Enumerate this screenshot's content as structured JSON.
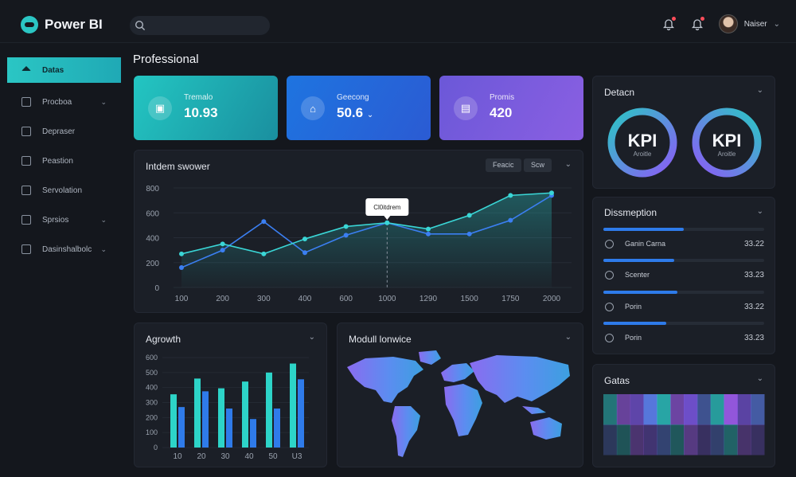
{
  "app": {
    "title": "Power BI"
  },
  "header": {
    "search_placeholder": "",
    "user_name": "Naiser"
  },
  "sidebar": {
    "items": [
      {
        "label": "Datas",
        "active": true,
        "has_caret": false
      },
      {
        "label": "Procboa",
        "active": false,
        "has_caret": true
      },
      {
        "label": "Depraser",
        "active": false,
        "has_caret": false
      },
      {
        "label": "Peastion",
        "active": false,
        "has_caret": false
      },
      {
        "label": "Servolation",
        "active": false,
        "has_caret": false
      },
      {
        "label": "Sprsios",
        "active": false,
        "has_caret": true
      },
      {
        "label": "Dasinshalbolc",
        "active": false,
        "has_caret": true
      }
    ]
  },
  "page": {
    "title": "Professional"
  },
  "kpi_tiles": [
    {
      "label": "Tremalo",
      "value": "10.93",
      "icon": "inbox-icon",
      "has_caret": false
    },
    {
      "label": "Geecong",
      "value": "50.6",
      "icon": "home-icon",
      "has_caret": true
    },
    {
      "label": "Promis",
      "value": "420",
      "icon": "calendar-icon",
      "has_caret": false
    }
  ],
  "line_chart": {
    "title": "Intdem swower",
    "buttons": [
      "Feacic",
      "Scw"
    ],
    "tooltip": "Cl0itdrem"
  },
  "detach": {
    "title": "Detacn",
    "donuts": [
      {
        "big": "KPI",
        "small": "Aroitle"
      },
      {
        "big": "KPI",
        "small": "Aroitle"
      }
    ]
  },
  "distribution": {
    "title": "Dissmeption",
    "rows": [
      {
        "name": "Ganin Carna",
        "value": "33.22",
        "fraction": 0.5
      },
      {
        "name": "Scenter",
        "value": "33.23",
        "fraction": 0.44
      },
      {
        "name": "Porin",
        "value": "33.22",
        "fraction": 0.46
      },
      {
        "name": "Porin",
        "value": "33.23",
        "fraction": 0.39
      }
    ]
  },
  "growth": {
    "title": "Agrowth"
  },
  "map": {
    "title": "Modull lonwice"
  },
  "heatmap": {
    "title": "Gatas"
  },
  "colors": {
    "teal": "#2bc6c4",
    "blue": "#2e7bea",
    "purple": "#7a55e0",
    "bg": "#14171d",
    "card": "#1b1f27"
  },
  "chart_data": [
    {
      "type": "line",
      "title": "Intdem swower",
      "x": [
        100,
        200,
        300,
        400,
        600,
        1000,
        1290,
        1500,
        1750,
        2000
      ],
      "x_ticks": [
        "100",
        "200",
        "300",
        "400",
        "600",
        "1000",
        "1290",
        "1500",
        "1750",
        "2000"
      ],
      "y_ticks": [
        "0",
        "200",
        "400",
        "600",
        "800"
      ],
      "ylim": [
        0,
        800
      ],
      "series": [
        {
          "color": "#3ad6d6",
          "values": [
            270,
            350,
            270,
            390,
            490,
            520,
            470,
            580,
            740,
            760
          ]
        },
        {
          "color": "#3b7ff2",
          "values": [
            160,
            300,
            530,
            280,
            420,
            520,
            430,
            430,
            540,
            740
          ]
        }
      ]
    },
    {
      "type": "bar",
      "title": "Agrowth",
      "categories": [
        "10",
        "20",
        "30",
        "40",
        "50",
        "U3"
      ],
      "y_ticks": [
        "0",
        "100",
        "200",
        "300",
        "400",
        "500",
        "600"
      ],
      "ylim": [
        0,
        600
      ],
      "series": [
        {
          "color": "#2dd4c8",
          "values": [
            355,
            460,
            395,
            440,
            500,
            560
          ]
        },
        {
          "color": "#2f7bea",
          "values": [
            270,
            375,
            260,
            190,
            260,
            455
          ]
        }
      ]
    },
    {
      "type": "heatmap",
      "title": "Gatas",
      "rows": 2,
      "values": [
        [
          0.25,
          0.35,
          0.55,
          0.9,
          0.7,
          0.4,
          0.8,
          0.3,
          0.6,
          0.85,
          0.5,
          0.45
        ],
        [
          0.2,
          0.3,
          0.4,
          0.5,
          0.45,
          0.35,
          0.6,
          0.3,
          0.4,
          0.5,
          0.35,
          0.3
        ]
      ]
    }
  ]
}
